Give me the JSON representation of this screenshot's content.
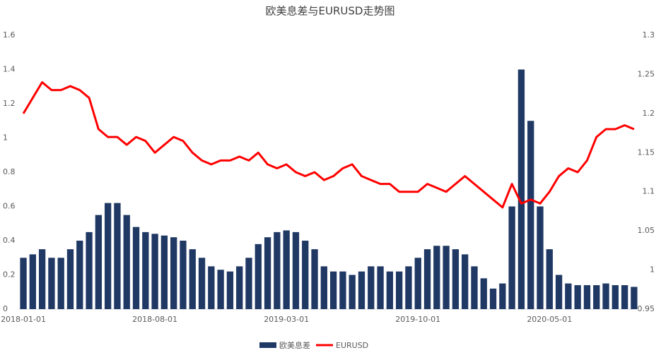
{
  "chart_data": {
    "type": "bar-line",
    "title": "欧美息差与EURUSD走势图",
    "categories": [
      "2018-01-01",
      null,
      null,
      null,
      null,
      null,
      null,
      null,
      null,
      null,
      null,
      null,
      null,
      null,
      "2018-08-01",
      null,
      null,
      null,
      null,
      null,
      null,
      null,
      null,
      null,
      null,
      null,
      null,
      null,
      "2019-03-01",
      null,
      null,
      null,
      null,
      null,
      null,
      null,
      null,
      null,
      null,
      null,
      null,
      null,
      "2019-10-01",
      null,
      null,
      null,
      null,
      null,
      null,
      null,
      null,
      null,
      null,
      null,
      null,
      null,
      "2020-05-01",
      null,
      null,
      null,
      null,
      null,
      null,
      null,
      null,
      null
    ],
    "series": [
      {
        "name": "欧美息差",
        "color": "#203864",
        "kind": "bar",
        "axis": "y",
        "values": [
          0.3,
          0.32,
          0.35,
          0.3,
          0.3,
          0.35,
          0.4,
          0.45,
          0.55,
          0.62,
          0.62,
          0.55,
          0.48,
          0.45,
          0.44,
          0.43,
          0.42,
          0.4,
          0.35,
          0.3,
          0.25,
          0.23,
          0.22,
          0.25,
          0.3,
          0.38,
          0.42,
          0.45,
          0.46,
          0.45,
          0.4,
          0.35,
          0.25,
          0.22,
          0.22,
          0.2,
          0.22,
          0.25,
          0.25,
          0.22,
          0.22,
          0.25,
          0.3,
          0.35,
          0.37,
          0.37,
          0.35,
          0.32,
          0.25,
          0.18,
          0.12,
          0.15,
          0.6,
          1.4,
          1.1,
          0.6,
          0.35,
          0.2,
          0.15,
          0.14,
          0.14,
          0.14,
          0.15,
          0.14,
          0.14,
          0.13
        ]
      },
      {
        "name": "EURUSD",
        "color": "#ff0000",
        "kind": "line",
        "axis": "y2",
        "values": [
          1.2,
          1.22,
          1.24,
          1.23,
          1.23,
          1.235,
          1.23,
          1.22,
          1.18,
          1.17,
          1.17,
          1.16,
          1.17,
          1.165,
          1.15,
          1.16,
          1.17,
          1.165,
          1.15,
          1.14,
          1.135,
          1.14,
          1.14,
          1.145,
          1.14,
          1.15,
          1.135,
          1.13,
          1.135,
          1.125,
          1.12,
          1.125,
          1.115,
          1.12,
          1.13,
          1.135,
          1.12,
          1.115,
          1.11,
          1.11,
          1.1,
          1.1,
          1.1,
          1.11,
          1.105,
          1.1,
          1.11,
          1.12,
          1.11,
          1.1,
          1.09,
          1.08,
          1.11,
          1.085,
          1.09,
          1.085,
          1.1,
          1.12,
          1.13,
          1.125,
          1.14,
          1.17,
          1.18,
          1.18,
          1.185,
          1.18
        ]
      }
    ],
    "ylim": [
      0,
      1.6
    ],
    "yticks": [
      0,
      0.2,
      0.4,
      0.6,
      0.8,
      1,
      1.2,
      1.4,
      1.6
    ],
    "y2lim": [
      0.95,
      1.3
    ],
    "y2ticks": [
      0.95,
      1,
      1.05,
      1.1,
      1.15,
      1.2,
      1.25,
      1.3
    ],
    "legend": "bottom"
  }
}
